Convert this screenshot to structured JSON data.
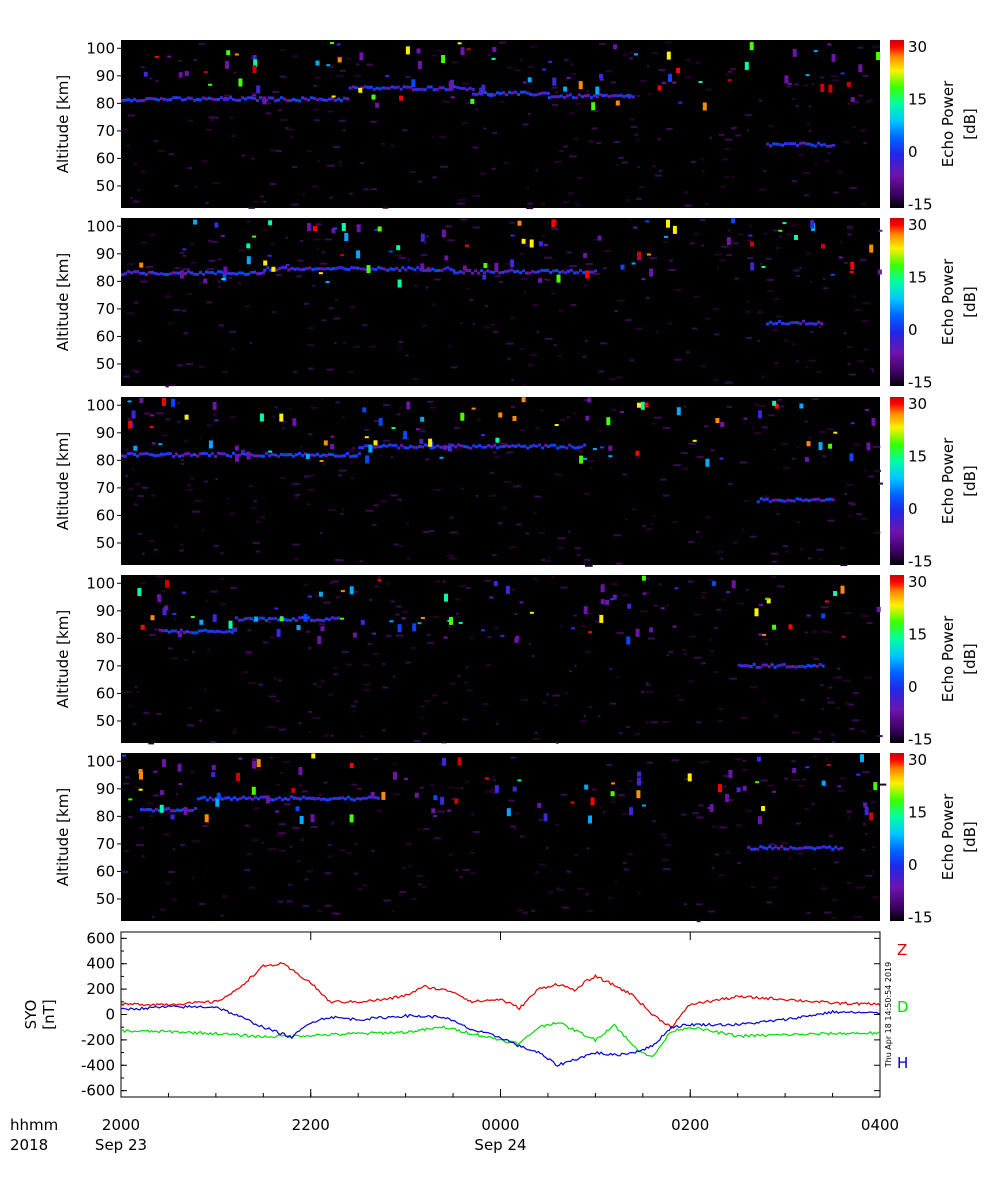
{
  "chart_data": [
    {
      "type": "heatmap",
      "panel": 1,
      "ylabel": "Altitude [km]",
      "yticks": [
        "100",
        "90",
        "80",
        "70",
        "60",
        "50"
      ],
      "ylim": [
        42,
        103
      ],
      "colorbar_label": "Echo Power [dB]",
      "colorbar_ticks": [
        "30",
        "15",
        "0",
        "-15"
      ],
      "colorbar_range": [
        -16,
        32
      ],
      "echo_layers": [
        {
          "from_hour": -4.0,
          "to_hour": -1.6,
          "alt_km": 81.5
        },
        {
          "from_hour": -1.6,
          "to_hour": -0.3,
          "alt_km": 85.5
        },
        {
          "from_hour": -0.3,
          "to_hour": 0.5,
          "alt_km": 83.5
        },
        {
          "from_hour": 0.5,
          "to_hour": 1.4,
          "alt_km": 82.5
        },
        {
          "from_hour": 2.8,
          "to_hour": 3.5,
          "alt_km": 65.0
        }
      ]
    },
    {
      "type": "heatmap",
      "panel": 2,
      "ylabel": "Altitude [km]",
      "yticks": [
        "100",
        "90",
        "80",
        "70",
        "60",
        "50"
      ],
      "ylim": [
        42,
        103
      ],
      "colorbar_label": "Echo Power [dB]",
      "colorbar_ticks": [
        "30",
        "15",
        "0",
        "-15"
      ],
      "colorbar_range": [
        -16,
        32
      ],
      "echo_layers": [
        {
          "from_hour": -4.0,
          "to_hour": -2.5,
          "alt_km": 83.0
        },
        {
          "from_hour": -2.5,
          "to_hour": -0.5,
          "alt_km": 84.5
        },
        {
          "from_hour": -0.5,
          "to_hour": 1.0,
          "alt_km": 83.5
        },
        {
          "from_hour": 2.8,
          "to_hour": 3.4,
          "alt_km": 65.0
        }
      ]
    },
    {
      "type": "heatmap",
      "panel": 3,
      "ylabel": "Altitude [km]",
      "yticks": [
        "100",
        "90",
        "80",
        "70",
        "60",
        "50"
      ],
      "ylim": [
        42,
        103
      ],
      "colorbar_label": "Echo Power [dB]",
      "colorbar_ticks": [
        "30",
        "15",
        "0",
        "-15"
      ],
      "colorbar_range": [
        -16,
        32
      ],
      "echo_layers": [
        {
          "from_hour": -4.0,
          "to_hour": -1.5,
          "alt_km": 82.0
        },
        {
          "from_hour": -1.5,
          "to_hour": 0.9,
          "alt_km": 85.0
        },
        {
          "from_hour": 2.7,
          "to_hour": 3.5,
          "alt_km": 65.5
        }
      ]
    },
    {
      "type": "heatmap",
      "panel": 4,
      "ylabel": "Altitude [km]",
      "yticks": [
        "100",
        "90",
        "80",
        "70",
        "60",
        "50"
      ],
      "ylim": [
        42,
        103
      ],
      "colorbar_label": "Echo Power [dB]",
      "colorbar_ticks": [
        "30",
        "15",
        "0",
        "-15"
      ],
      "colorbar_range": [
        -16,
        32
      ],
      "echo_layers": [
        {
          "from_hour": -3.6,
          "to_hour": -2.8,
          "alt_km": 82.5
        },
        {
          "from_hour": -2.8,
          "to_hour": -1.7,
          "alt_km": 87.0
        },
        {
          "from_hour": 2.5,
          "to_hour": 3.4,
          "alt_km": 70.0
        }
      ]
    },
    {
      "type": "heatmap",
      "panel": 5,
      "ylabel": "Altitude [km]",
      "yticks": [
        "100",
        "90",
        "80",
        "70",
        "60",
        "50"
      ],
      "ylim": [
        42,
        103
      ],
      "colorbar_label": "Echo Power [dB]",
      "colorbar_ticks": [
        "30",
        "15",
        "0",
        "-15"
      ],
      "colorbar_range": [
        -16,
        32
      ],
      "echo_layers": [
        {
          "from_hour": -3.8,
          "to_hour": -3.2,
          "alt_km": 82.5
        },
        {
          "from_hour": -3.2,
          "to_hour": -1.3,
          "alt_km": 86.5
        },
        {
          "from_hour": 2.6,
          "to_hour": 3.6,
          "alt_km": 68.5
        }
      ]
    },
    {
      "type": "line",
      "panel": 6,
      "ylabel": "SYO [nT]",
      "yticks": [
        "600",
        "400",
        "200",
        "0",
        "-200",
        "-400",
        "-600"
      ],
      "ylim": [
        -650,
        650
      ],
      "xlim_hours": [
        -4,
        4
      ],
      "series": [
        {
          "name": "Z",
          "color": "#dd0000",
          "x": [
            -4.0,
            -3.5,
            -3.0,
            -2.8,
            -2.5,
            -2.3,
            -2.0,
            -1.8,
            -1.5,
            -1.2,
            -1.0,
            -0.8,
            -0.5,
            -0.3,
            0.0,
            0.2,
            0.4,
            0.6,
            0.8,
            0.9,
            1.0,
            1.2,
            1.4,
            1.6,
            1.8,
            2.0,
            2.5,
            3.0,
            3.5,
            4.0
          ],
          "y": [
            80,
            80,
            100,
            180,
            380,
            400,
            250,
            100,
            100,
            120,
            150,
            220,
            180,
            100,
            120,
            50,
            200,
            240,
            190,
            260,
            300,
            230,
            150,
            0,
            -100,
            80,
            140,
            120,
            90,
            80
          ]
        },
        {
          "name": "D",
          "color": "#00dd00",
          "x": [
            -4.0,
            -3.5,
            -3.0,
            -2.5,
            -2.0,
            -1.5,
            -1.0,
            -0.6,
            -0.3,
            0.0,
            0.2,
            0.4,
            0.6,
            0.8,
            1.0,
            1.2,
            1.4,
            1.6,
            1.8,
            2.0,
            2.5,
            3.0,
            3.5,
            4.0
          ],
          "y": [
            -130,
            -135,
            -150,
            -175,
            -165,
            -150,
            -140,
            -100,
            -150,
            -200,
            -230,
            -100,
            -60,
            -130,
            -200,
            -80,
            -250,
            -340,
            -130,
            -100,
            -170,
            -160,
            -150,
            -145
          ]
        },
        {
          "name": "H",
          "color": "#0000cc",
          "x": [
            -4.0,
            -3.5,
            -3.0,
            -2.8,
            -2.5,
            -2.2,
            -2.0,
            -1.8,
            -1.5,
            -1.0,
            -0.6,
            -0.3,
            0.0,
            0.2,
            0.4,
            0.6,
            0.8,
            1.0,
            1.2,
            1.4,
            1.6,
            1.8,
            2.0,
            2.5,
            3.0,
            3.5,
            4.0
          ],
          "y": [
            40,
            60,
            60,
            0,
            -100,
            -180,
            -60,
            -20,
            -40,
            -10,
            -20,
            -120,
            -180,
            -250,
            -300,
            -400,
            -350,
            -300,
            -320,
            -300,
            -250,
            -100,
            -80,
            -80,
            -40,
            20,
            10
          ]
        }
      ]
    }
  ],
  "xaxis": {
    "row1_label": "hhmm",
    "row2_label": "2018",
    "ticks": [
      {
        "hour": -4,
        "label": "2000",
        "sub": "Sep 23"
      },
      {
        "hour": -2,
        "label": "2200",
        "sub": ""
      },
      {
        "hour": 0,
        "label": "0000",
        "sub": "Sep 24"
      },
      {
        "hour": 2,
        "label": "0200",
        "sub": ""
      },
      {
        "hour": 4,
        "label": "0400",
        "sub": ""
      }
    ]
  },
  "timestamp": "Thu Apr 18 14:50:54 2019",
  "colors": {
    "background": "#000000",
    "colorscale": [
      "#0a000a",
      "#3c0064",
      "#6e14aa",
      "#3c28dc",
      "#0a46ff",
      "#00aaff",
      "#00ffaa",
      "#46ff00",
      "#fff000",
      "#ff8c00",
      "#ff0000",
      "#cc0000"
    ]
  }
}
